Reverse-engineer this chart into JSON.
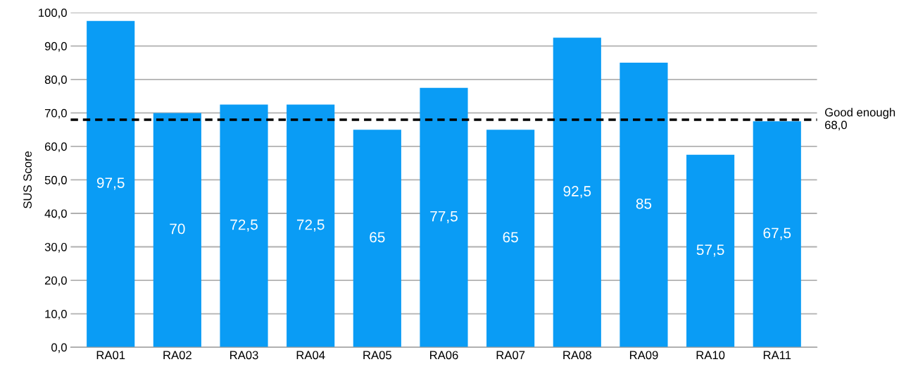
{
  "chart_data": {
    "type": "bar",
    "ylabel": "SUS Score",
    "categories": [
      "RA01",
      "RA02",
      "RA03",
      "RA04",
      "RA05",
      "RA06",
      "RA07",
      "RA08",
      "RA09",
      "RA10",
      "RA11"
    ],
    "series": [
      {
        "color": "#0a9cf5",
        "values": [
          97.5,
          70,
          72.5,
          72.5,
          65,
          77.5,
          65,
          92.5,
          85,
          57.5,
          67.5
        ],
        "value_labels": [
          "97,5",
          "70",
          "72,5",
          "72,5",
          "65",
          "77,5",
          "65",
          "92,5",
          "85",
          "57,5",
          "67,5"
        ]
      }
    ],
    "ylim": [
      0,
      100
    ],
    "yticks": [
      {
        "value": 0,
        "label": "0,0"
      },
      {
        "value": 10,
        "label": "10,0"
      },
      {
        "value": 20,
        "label": "20,0"
      },
      {
        "value": 30,
        "label": "30,0"
      },
      {
        "value": 40,
        "label": "40,0"
      },
      {
        "value": 50,
        "label": "50,0"
      },
      {
        "value": 60,
        "label": "60,0"
      },
      {
        "value": 70,
        "label": "70,0"
      },
      {
        "value": 80,
        "label": "80,0"
      },
      {
        "value": 90,
        "label": "90,0"
      },
      {
        "value": 100,
        "label": "100,0"
      }
    ],
    "ref_lines": [
      {
        "axis": "y",
        "value": 68,
        "label": "Good enough\n68,0",
        "color": "#000000",
        "line_style": "dashed"
      }
    ],
    "grid": "y",
    "legend": false
  }
}
